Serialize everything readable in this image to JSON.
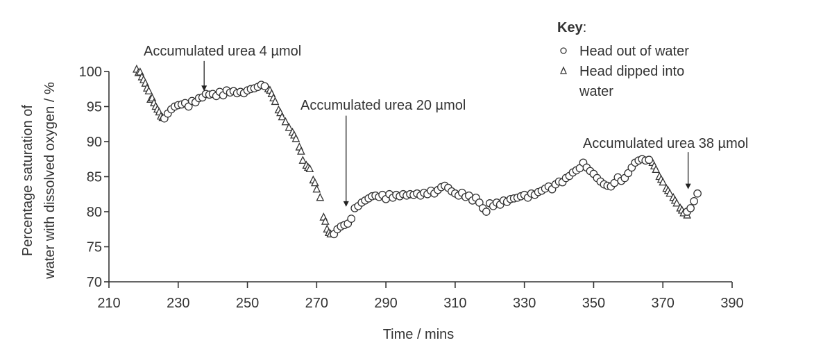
{
  "chart_data": {
    "type": "scatter",
    "title": "",
    "xlabel": "Time / mins",
    "ylabel_lines": [
      "Percentage saturation of",
      "water with dissolved oxygen / %"
    ],
    "xlim": [
      210,
      390
    ],
    "ylim": [
      70,
      100
    ],
    "xticks": [
      210,
      230,
      250,
      270,
      290,
      310,
      330,
      350,
      370,
      390
    ],
    "yticks": [
      70,
      75,
      80,
      85,
      90,
      95,
      100
    ],
    "grid": false,
    "legend": {
      "title": "Key",
      "title_suffix": ":",
      "placement": "top-right",
      "entries": [
        {
          "marker": "circle",
          "lines": [
            "Head out of water"
          ]
        },
        {
          "marker": "triangle",
          "lines": [
            "Head dipped into",
            "water"
          ]
        }
      ]
    },
    "annotations": [
      {
        "text": "Accumulated urea 4 µmol",
        "x": 237.5,
        "y_from": 101.5,
        "y_to": 97.2
      },
      {
        "text": "Accumulated urea 20 µmol",
        "x": 278.5,
        "y_from": 93.7,
        "y_to": 80.7
      },
      {
        "text": "Accumulated urea 38 µmol",
        "x": 377.3,
        "y_from": 88.5,
        "y_to": 83.2
      }
    ],
    "series": [
      {
        "name": "Head dipped into water",
        "marker": "triangle",
        "x": [
          218,
          218.5,
          219,
          219.5,
          220,
          220.5,
          221,
          221.5,
          222,
          222.5,
          223,
          223.5,
          224,
          224.5,
          225,
          225.5,
          256,
          256.5,
          257,
          257.5,
          258,
          259,
          259.5,
          260,
          261,
          262,
          263,
          263.5,
          264,
          265,
          265.5,
          266,
          267,
          267.5,
          268,
          269,
          269.5,
          270,
          271,
          272,
          272.5,
          273,
          273.5,
          274,
          367,
          367.5,
          368,
          369,
          369.5,
          370,
          371,
          371.5,
          372,
          373,
          373.5,
          374,
          375,
          375.5,
          376,
          377
        ],
        "y": [
          100.3,
          99.8,
          99.9,
          99.2,
          98.8,
          98.3,
          97.6,
          97.2,
          96.0,
          96.2,
          95.5,
          95.0,
          94.6,
          94.2,
          93.6,
          93.4,
          97.5,
          97.3,
          96.8,
          96.2,
          95.7,
          94.5,
          94.1,
          93.5,
          92.8,
          92.0,
          91.3,
          90.9,
          90.4,
          89.2,
          88.6,
          87.3,
          86.6,
          86.3,
          86.1,
          84.5,
          84.1,
          83.2,
          82.0,
          79.2,
          78.6,
          77.5,
          77.0,
          76.8,
          87.0,
          86.5,
          86.0,
          85.0,
          84.6,
          84.2,
          83.3,
          83.0,
          82.6,
          82.0,
          81.6,
          81.2,
          80.5,
          80.2,
          79.8,
          79.5
        ]
      },
      {
        "name": "Head out of water",
        "marker": "circle",
        "x": [
          226,
          227,
          228,
          229,
          230,
          231,
          232,
          233,
          234,
          235,
          236,
          237,
          238,
          239,
          240,
          241,
          242,
          243,
          244,
          245,
          246,
          247,
          248,
          249,
          250,
          251,
          252,
          253,
          254,
          255,
          275,
          276,
          277,
          278,
          279,
          280,
          281,
          282,
          283,
          284,
          285,
          286,
          287,
          288,
          289,
          290,
          291,
          292,
          293,
          294,
          295,
          296,
          297,
          298,
          299,
          300,
          301,
          302,
          303,
          304,
          305,
          306,
          307,
          308,
          309,
          310,
          311,
          312,
          313,
          314,
          315,
          316,
          317,
          318,
          319,
          320,
          321,
          322,
          323,
          324,
          325,
          326,
          327,
          328,
          329,
          330,
          331,
          332,
          333,
          334,
          335,
          336,
          337,
          338,
          339,
          340,
          341,
          342,
          343,
          344,
          345,
          346,
          347,
          348,
          349,
          350,
          351,
          352,
          353,
          354,
          355,
          356,
          357,
          358,
          359,
          360,
          361,
          362,
          363,
          364,
          365,
          366,
          377,
          378,
          379,
          380
        ],
        "y": [
          93.3,
          94.0,
          94.6,
          95.0,
          95.2,
          95.3,
          95.5,
          95.0,
          95.8,
          95.6,
          96.2,
          96.3,
          96.8,
          96.7,
          96.8,
          96.5,
          97.1,
          96.6,
          97.3,
          97.0,
          97.2,
          96.9,
          97.1,
          96.9,
          97.3,
          97.5,
          97.6,
          97.8,
          98.1,
          97.9,
          76.8,
          77.5,
          77.9,
          78.1,
          78.3,
          79.0,
          80.5,
          80.8,
          81.3,
          81.6,
          81.9,
          82.2,
          82.3,
          82.1,
          82.4,
          81.8,
          82.5,
          82.0,
          82.4,
          82.2,
          82.5,
          82.3,
          82.5,
          82.4,
          82.6,
          82.3,
          82.7,
          82.5,
          83.0,
          82.6,
          83.1,
          83.5,
          83.7,
          83.4,
          82.9,
          82.6,
          82.3,
          82.7,
          82.1,
          82.3,
          81.6,
          82.0,
          81.3,
          80.5,
          80.0,
          81.2,
          80.8,
          81.3,
          81.0,
          81.6,
          81.4,
          81.8,
          81.9,
          82.0,
          82.2,
          82.4,
          82.0,
          82.6,
          82.4,
          82.8,
          83.0,
          83.3,
          83.6,
          83.2,
          83.9,
          84.3,
          84.2,
          84.8,
          85.1,
          85.6,
          85.9,
          86.2,
          87.0,
          86.3,
          85.8,
          85.4,
          84.8,
          84.3,
          83.9,
          83.7,
          83.6,
          84.1,
          84.9,
          84.4,
          84.8,
          85.5,
          86.3,
          87.0,
          87.3,
          87.5,
          87.3,
          87.4,
          80.0,
          80.5,
          81.5,
          82.6
        ]
      }
    ]
  }
}
